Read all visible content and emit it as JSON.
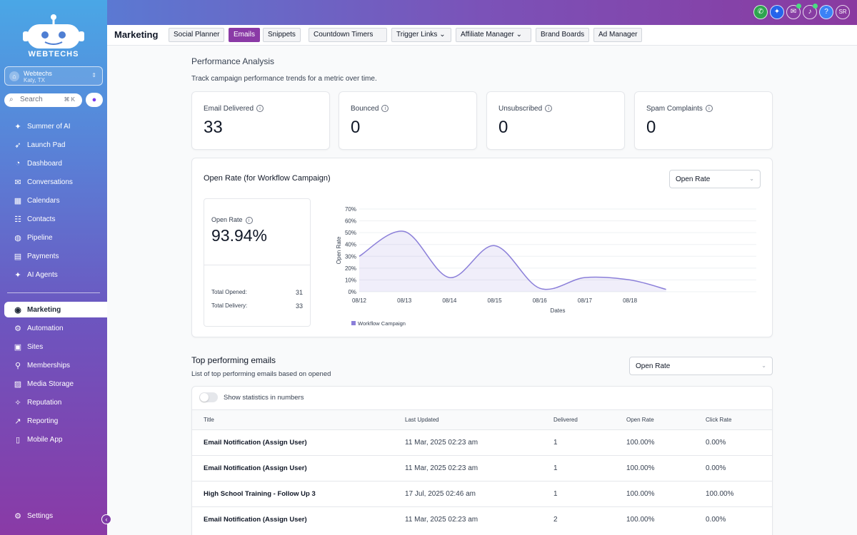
{
  "sidebar": {
    "logo_text": "WEBTECHS",
    "account": {
      "name": "Webtechs",
      "location": "Katy, TX"
    },
    "search": {
      "placeholder": "Search",
      "shortcut": "⌘ K"
    },
    "items_top": [
      {
        "label": "Summer of AI",
        "icon": "sparkle-icon"
      },
      {
        "label": "Launch Pad",
        "icon": "rocket-icon"
      },
      {
        "label": "Dashboard",
        "icon": "dashboard-icon"
      },
      {
        "label": "Conversations",
        "icon": "chat-icon"
      },
      {
        "label": "Calendars",
        "icon": "calendar-icon"
      },
      {
        "label": "Contacts",
        "icon": "contacts-icon"
      },
      {
        "label": "Pipeline",
        "icon": "pipeline-icon"
      },
      {
        "label": "Payments",
        "icon": "payments-icon"
      },
      {
        "label": "AI Agents",
        "icon": "sparkle-icon"
      }
    ],
    "items_bottom": [
      {
        "label": "Marketing",
        "icon": "marketing-icon",
        "active": true
      },
      {
        "label": "Automation",
        "icon": "automation-icon"
      },
      {
        "label": "Sites",
        "icon": "sites-icon"
      },
      {
        "label": "Memberships",
        "icon": "memberships-icon"
      },
      {
        "label": "Media Storage",
        "icon": "media-icon"
      },
      {
        "label": "Reputation",
        "icon": "reputation-icon"
      },
      {
        "label": "Reporting",
        "icon": "reporting-icon"
      },
      {
        "label": "Mobile App",
        "icon": "mobile-icon"
      }
    ],
    "settings": "Settings"
  },
  "topbar": {
    "user_initials": "SR",
    "help": "?"
  },
  "tabs": {
    "title": "Marketing",
    "items": [
      "Social Planner",
      "Emails",
      "Snippets",
      "Countdown Timers",
      "Trigger Links",
      "Affiliate Manager",
      "Brand Boards",
      "Ad Manager"
    ],
    "active": "Emails"
  },
  "performance": {
    "heading": "Performance Analysis",
    "subheading": "Track campaign performance trends for a metric over time.",
    "stats": [
      {
        "label": "Email Delivered",
        "value": "33"
      },
      {
        "label": "Bounced",
        "value": "0"
      },
      {
        "label": "Unsubscribed",
        "value": "0"
      },
      {
        "label": "Spam Complaints",
        "value": "0"
      }
    ]
  },
  "open_rate_card": {
    "title": "Open Rate (for Workflow Campaign)",
    "select_value": "Open Rate",
    "metric_label": "Open Rate",
    "metric_value": "93.94%",
    "total_opened_label": "Total Opened:",
    "total_opened": "31",
    "total_delivery_label": "Total Delivery:",
    "total_delivery": "33"
  },
  "chart_data": {
    "type": "area",
    "x": [
      "08/12",
      "08/13",
      "08/14",
      "08/15",
      "08/16",
      "08/17",
      "08/18"
    ],
    "x_end": 8.8,
    "series": [
      {
        "name": "Workflow Campaign",
        "color": "#8b7fd9",
        "points": [
          [
            0,
            30
          ],
          [
            1,
            51
          ],
          [
            2,
            12
          ],
          [
            3,
            39
          ],
          [
            4,
            3
          ],
          [
            5,
            12
          ],
          [
            6,
            10
          ],
          [
            6.8,
            2
          ]
        ]
      }
    ],
    "y_ticks": [
      "0%",
      "10%",
      "20%",
      "30%",
      "40%",
      "50%",
      "60%",
      "70%"
    ],
    "ylim": [
      0,
      70
    ],
    "xlabel": "Dates",
    "ylabel": "Open Rate",
    "grid": true,
    "legend": "bottom-left"
  },
  "top_emails": {
    "heading": "Top performing emails",
    "subheading": "List of top performing emails based on opened",
    "select_value": "Open Rate",
    "toggle_label": "Show statistics in numbers",
    "columns": [
      "Title",
      "Last Updated",
      "Delivered",
      "Open Rate",
      "Click Rate"
    ],
    "rows": [
      [
        "Email Notification (Assign User)",
        "11 Mar, 2025 02:23 am",
        "1",
        "100.00%",
        "0.00%"
      ],
      [
        "Email Notification (Assign User)",
        "11 Mar, 2025 02:23 am",
        "1",
        "100.00%",
        "0.00%"
      ],
      [
        "High School Training - Follow Up 3",
        "17 Jul, 2025 02:46 am",
        "1",
        "100.00%",
        "100.00%"
      ],
      [
        "Email Notification (Assign User)",
        "11 Mar, 2025 02:23 am",
        "2",
        "100.00%",
        "0.00%"
      ]
    ]
  }
}
